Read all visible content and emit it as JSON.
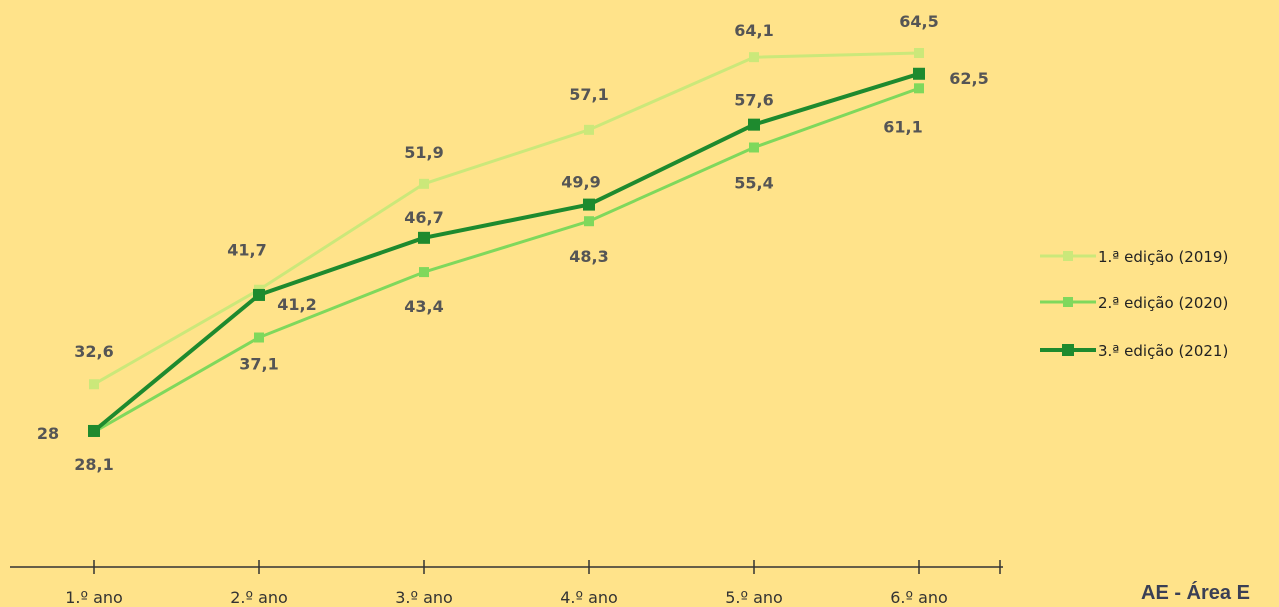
{
  "chart_data": {
    "type": "line",
    "categories": [
      "1.º ano",
      "2.º ano",
      "3.º ano",
      "4.º ano",
      "5.º ano",
      "6.º ano"
    ],
    "series": [
      {
        "name": "1.ª edição (2019)",
        "color": "#CBE87A",
        "values": [
          32.6,
          41.7,
          51.9,
          57.1,
          64.1,
          64.5
        ],
        "labels": [
          "32,6",
          "41,7",
          "51,9",
          "57,1",
          "64,1",
          "64,5"
        ]
      },
      {
        "name": "2.ª edição (2020)",
        "color": "#7FD85C",
        "values": [
          28,
          37.1,
          43.4,
          48.3,
          55.4,
          61.1
        ],
        "labels": [
          "28",
          "37,1",
          "43,4",
          "48,3",
          "55,4",
          "61,1"
        ]
      },
      {
        "name": "3.ª edição (2021)",
        "color": "#1E8A2E",
        "values": [
          28.1,
          41.2,
          46.7,
          49.9,
          57.6,
          62.5
        ],
        "labels": [
          "28,1",
          "41,2",
          "46,7",
          "49,9",
          "57,6",
          "62,5"
        ]
      }
    ],
    "legend_position": "right",
    "grid": false
  },
  "footer": {
    "text": "AE - Área E"
  }
}
